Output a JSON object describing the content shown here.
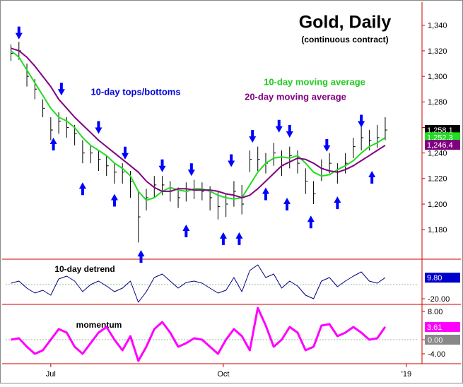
{
  "chart_data": [
    {
      "type": "ohlc",
      "title": "Gold, Daily",
      "subtitle": "(continuous contract)",
      "xlim": [
        -17,
        138
      ],
      "ylim": [
        1158,
        1357
      ],
      "yticks": [
        {
          "value": 1180,
          "label": "1,180"
        },
        {
          "value": 1200,
          "label": "1,200"
        },
        {
          "value": 1220,
          "label": "1,220"
        },
        {
          "value": 1240,
          "label": "1,240"
        },
        {
          "value": 1260,
          "label": "1,260"
        },
        {
          "value": 1280,
          "label": "1,280"
        },
        {
          "value": 1300,
          "label": "1,300"
        },
        {
          "value": 1320,
          "label": "1,320"
        },
        {
          "value": 1340,
          "label": "1,340"
        }
      ],
      "x": [
        -15,
        -12,
        -9,
        -6,
        -3,
        0,
        3,
        6,
        9,
        12,
        15,
        18,
        21,
        24,
        27,
        30,
        33,
        36,
        39,
        42,
        45,
        48,
        51,
        54,
        57,
        60,
        63,
        66,
        69,
        72,
        75,
        78,
        81,
        84,
        87,
        90,
        93,
        96,
        99,
        102,
        105,
        108,
        111,
        114,
        117,
        120,
        123,
        126
      ],
      "high": [
        1325,
        1327,
        1310,
        1298,
        1282,
        1268,
        1272,
        1268,
        1262,
        1250,
        1246,
        1242,
        1238,
        1232,
        1232,
        1226,
        1210,
        1212,
        1222,
        1222,
        1218,
        1213,
        1217,
        1219,
        1217,
        1214,
        1210,
        1208,
        1218,
        1215,
        1242,
        1245,
        1240,
        1248,
        1242,
        1245,
        1242,
        1228,
        1218,
        1235,
        1240,
        1232,
        1240,
        1252,
        1262,
        1258,
        1262,
        1268
      ],
      "low": [
        1312,
        1313,
        1292,
        1282,
        1268,
        1250,
        1255,
        1252,
        1246,
        1232,
        1232,
        1226,
        1222,
        1216,
        1216,
        1205,
        1170,
        1195,
        1205,
        1207,
        1202,
        1197,
        1202,
        1204,
        1203,
        1195,
        1188,
        1190,
        1198,
        1192,
        1225,
        1226,
        1224,
        1230,
        1222,
        1228,
        1224,
        1208,
        1200,
        1218,
        1224,
        1216,
        1224,
        1236,
        1242,
        1242,
        1244,
        1250
      ],
      "close": [
        1318,
        1320,
        1300,
        1290,
        1275,
        1258,
        1265,
        1260,
        1255,
        1240,
        1240,
        1235,
        1230,
        1225,
        1225,
        1218,
        1190,
        1205,
        1215,
        1215,
        1210,
        1205,
        1210,
        1212,
        1210,
        1205,
        1198,
        1200,
        1210,
        1200,
        1235,
        1235,
        1232,
        1240,
        1230,
        1238,
        1232,
        1218,
        1208,
        1228,
        1232,
        1225,
        1232,
        1245,
        1252,
        1250,
        1252,
        1258
      ],
      "color": "#000000",
      "series": [
        {
          "name": "10-day moving average",
          "color": "#22dd22",
          "values": [
            1320,
            1315,
            1305,
            1295,
            1285,
            1275,
            1268,
            1265,
            1260,
            1252,
            1246,
            1242,
            1238,
            1232,
            1228,
            1222,
            1210,
            1203,
            1205,
            1210,
            1213,
            1211,
            1210,
            1212,
            1212,
            1210,
            1207,
            1205,
            1204,
            1205,
            1215,
            1225,
            1232,
            1236,
            1237,
            1236,
            1238,
            1232,
            1225,
            1222,
            1223,
            1227,
            1230,
            1234,
            1240,
            1245,
            1248,
            1252
          ]
        },
        {
          "name": "20-day moving average",
          "color": "#800080",
          "values": [
            1322,
            1320,
            1315,
            1308,
            1300,
            1292,
            1282,
            1275,
            1268,
            1262,
            1256,
            1250,
            1245,
            1240,
            1235,
            1230,
            1225,
            1218,
            1213,
            1210,
            1210,
            1212,
            1212,
            1211,
            1211,
            1211,
            1210,
            1208,
            1207,
            1205,
            1207,
            1212,
            1218,
            1224,
            1230,
            1233,
            1236,
            1235,
            1232,
            1228,
            1226,
            1225,
            1227,
            1230,
            1234,
            1238,
            1242,
            1246
          ]
        }
      ],
      "arrows": {
        "name": "10-day tops/bottoms",
        "color": "#0000ff",
        "tops": {
          "x": [
            -12,
            4,
            18,
            28,
            42,
            53,
            68,
            76,
            86,
            90,
            104,
            117
          ],
          "values": [
            1329,
            1285,
            1255,
            1235,
            1225,
            1222,
            1229,
            1248,
            1256,
            1252,
            1241,
            1260
          ]
        },
        "bottoms": {
          "x": [
            1,
            12,
            24,
            34,
            51,
            65,
            71,
            81,
            89,
            98,
            108,
            121
          ],
          "values": [
            1252,
            1217,
            1208,
            1164,
            1184,
            1178,
            1178,
            1213,
            1205,
            1191,
            1206,
            1226
          ]
        }
      },
      "last_values": {
        "values": [
          1258.1,
          1252.3,
          1246.4
        ],
        "value_labels": [
          "1,258.1",
          "1,252.3",
          "1,246.4"
        ],
        "colors": [
          "#000000",
          "#22dd22",
          "#800080"
        ]
      }
    },
    {
      "type": "line",
      "title": "10-day detrend",
      "xlim": [
        -17,
        138
      ],
      "ylim": [
        -27,
        33
      ],
      "yticks": [
        {
          "value": -20,
          "label": "-20.00"
        }
      ],
      "color": "#000080",
      "x": [
        -15,
        -12,
        -9,
        -6,
        -3,
        0,
        3,
        6,
        9,
        12,
        15,
        18,
        21,
        24,
        27,
        30,
        33,
        36,
        39,
        42,
        45,
        48,
        51,
        54,
        57,
        60,
        63,
        66,
        69,
        72,
        75,
        78,
        81,
        84,
        87,
        90,
        93,
        96,
        99,
        102,
        105,
        108,
        111,
        114,
        117,
        120,
        123,
        126
      ],
      "values": [
        2,
        5,
        -5,
        -12,
        -8,
        -15,
        8,
        12,
        5,
        -10,
        0,
        5,
        -2,
        -10,
        -5,
        5,
        -25,
        -10,
        10,
        15,
        5,
        -5,
        3,
        5,
        2,
        -5,
        -12,
        -8,
        10,
        -10,
        20,
        28,
        10,
        15,
        -5,
        5,
        -2,
        -15,
        -20,
        5,
        10,
        -3,
        5,
        12,
        18,
        5,
        2,
        9.8
      ],
      "last_value": {
        "value": 9.8,
        "label": "9.80",
        "color": "#0000cc"
      }
    },
    {
      "type": "line",
      "title": "momentum",
      "xlim": [
        -17,
        138
      ],
      "ylim": [
        -6.4,
        9.6
      ],
      "yticks": [
        {
          "value": -4,
          "label": "-4.00"
        },
        {
          "value": 0,
          "label": "0.00"
        },
        {
          "value": 8,
          "label": "8.00"
        }
      ],
      "color": "#ff00ff",
      "xticks": [
        {
          "value": 0,
          "label": "Jul"
        },
        {
          "value": 65,
          "label": "Oct"
        },
        {
          "value": 134,
          "label": "'19"
        }
      ],
      "x": [
        -15,
        -12,
        -9,
        -6,
        -3,
        0,
        3,
        6,
        9,
        12,
        15,
        18,
        21,
        24,
        27,
        30,
        33,
        36,
        39,
        42,
        45,
        48,
        51,
        54,
        57,
        60,
        63,
        66,
        69,
        72,
        75,
        78,
        81,
        84,
        87,
        90,
        93,
        96,
        99,
        102,
        105,
        108,
        111,
        114,
        117,
        120,
        123,
        126
      ],
      "values": [
        0,
        0.4,
        -2,
        -4,
        -3,
        0,
        3,
        2,
        -2,
        -4,
        -1,
        2,
        3.6,
        0,
        -3,
        1,
        -6,
        -2,
        3,
        5,
        2,
        -2,
        -1,
        0.4,
        0,
        -2,
        -4,
        0,
        3,
        1,
        -3,
        9,
        4,
        -2,
        0,
        3.6,
        2,
        -3,
        -2,
        4,
        4.4,
        1,
        2,
        3.6,
        2,
        0,
        0.4,
        3.61
      ],
      "last_value": {
        "value": 3.61,
        "label": "3.61",
        "color": "#ff00ff"
      }
    }
  ]
}
